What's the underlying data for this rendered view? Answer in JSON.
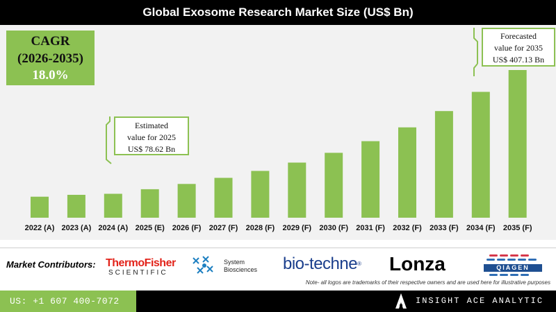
{
  "title": "Global Exosome Research Market Size (US$ Bn)",
  "cagr": {
    "label": "CAGR",
    "period": "(2026-2035)",
    "value": "18.0%"
  },
  "callouts": {
    "estimated": {
      "line1": "Estimated",
      "line2": "value for 2025",
      "line3": "US$ 78.62 Bn"
    },
    "forecasted": {
      "line1": "Forecasted",
      "line2": "value for 2035",
      "line3": "US$ 407.13 Bn"
    }
  },
  "chart_data": {
    "type": "bar",
    "title": "Global Exosome Research Market Size (US$ Bn)",
    "categories": [
      "2022 (A)",
      "2023 (A)",
      "2024 (A)",
      "2025 (E)",
      "2026 (F)",
      "2027 (F)",
      "2028 (F)",
      "2029 (F)",
      "2030 (F)",
      "2031 (F)",
      "2032 (F)",
      "2033 (F)",
      "2034 (F)",
      "2035 (F)"
    ],
    "values": [
      58,
      63,
      66,
      78.62,
      93,
      110,
      129,
      152,
      179,
      211,
      249,
      294,
      347,
      407.13
    ],
    "bar_color": "#8cc152",
    "xlabel": "",
    "ylabel": "",
    "ylim": [
      0,
      407.13
    ],
    "grid": false,
    "legend": "none"
  },
  "contributors": {
    "label": "Market Contributors:",
    "logos": {
      "thermo_line1": "ThermoFisher",
      "thermo_line2": "SCIENTIFIC",
      "sbi_line1": "System",
      "sbi_line2": "Biosciences",
      "biotechne": "bio-techne",
      "biotechne_reg": "®",
      "lonza": "Lonza",
      "qiagen": "QIAGEN"
    },
    "note": "Note- all logos are trademarks of their respective owners and are used here for illustrative purposes"
  },
  "footer": {
    "phone": "US: +1 607 400-7072",
    "brand": "INSIGHT ACE ANALYTIC"
  },
  "colors": {
    "accent": "#8cc152",
    "title_bg": "#000000",
    "panel_bg": "#f2f2f2",
    "thermo_red": "#e2231a",
    "biotechne_blue": "#1a3e8c",
    "qiagen_blue": "#1f4f91"
  }
}
